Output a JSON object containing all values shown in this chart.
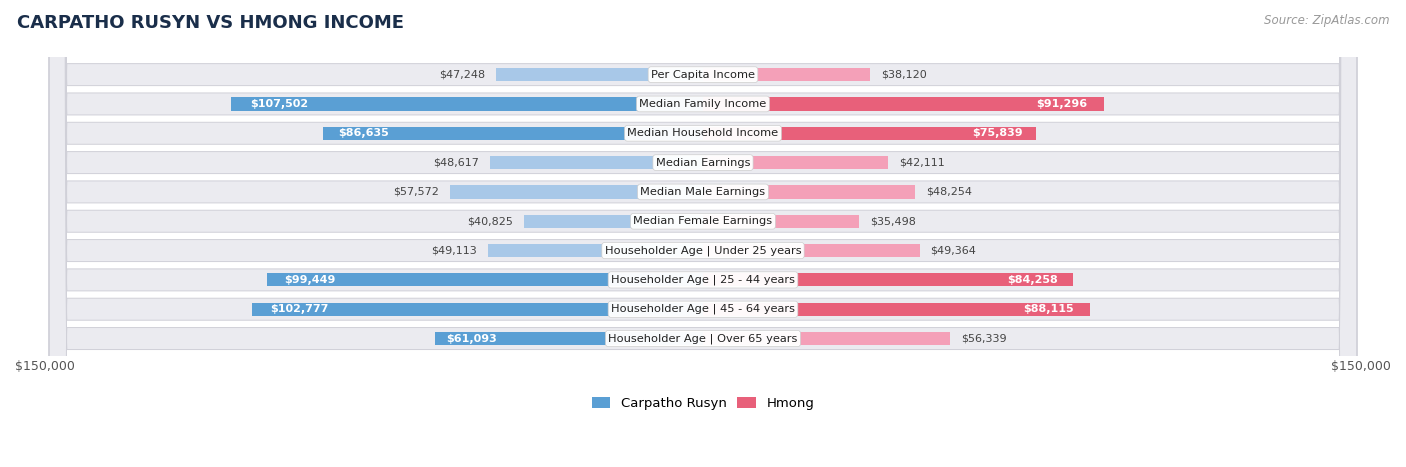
{
  "title": "CARPATHO RUSYN VS HMONG INCOME",
  "source": "Source: ZipAtlas.com",
  "max_val": 150000,
  "categories": [
    "Per Capita Income",
    "Median Family Income",
    "Median Household Income",
    "Median Earnings",
    "Median Male Earnings",
    "Median Female Earnings",
    "Householder Age | Under 25 years",
    "Householder Age | 25 - 44 years",
    "Householder Age | 45 - 64 years",
    "Householder Age | Over 65 years"
  ],
  "left_values": [
    47248,
    107502,
    86635,
    48617,
    57572,
    40825,
    49113,
    99449,
    102777,
    61093
  ],
  "right_values": [
    38120,
    91296,
    75839,
    42111,
    48254,
    35498,
    49364,
    84258,
    88115,
    56339
  ],
  "left_labels": [
    "$47,248",
    "$107,502",
    "$86,635",
    "$48,617",
    "$57,572",
    "$40,825",
    "$49,113",
    "$99,449",
    "$102,777",
    "$61,093"
  ],
  "right_labels": [
    "$38,120",
    "$91,296",
    "$75,839",
    "$42,111",
    "$48,254",
    "$35,498",
    "$49,364",
    "$84,258",
    "$88,115",
    "$56,339"
  ],
  "left_color_light": "#a8c8e8",
  "left_color_dark": "#5a9fd4",
  "right_color_light": "#f4a0b8",
  "right_color_dark": "#e8607a",
  "row_bg_color": "#ebebf0",
  "row_border_color": "#d0d0d8",
  "title_color": "#1a2e4a",
  "legend_left": "Carpatho Rusyn",
  "legend_right": "Hmong",
  "inside_threshold": 0.4
}
